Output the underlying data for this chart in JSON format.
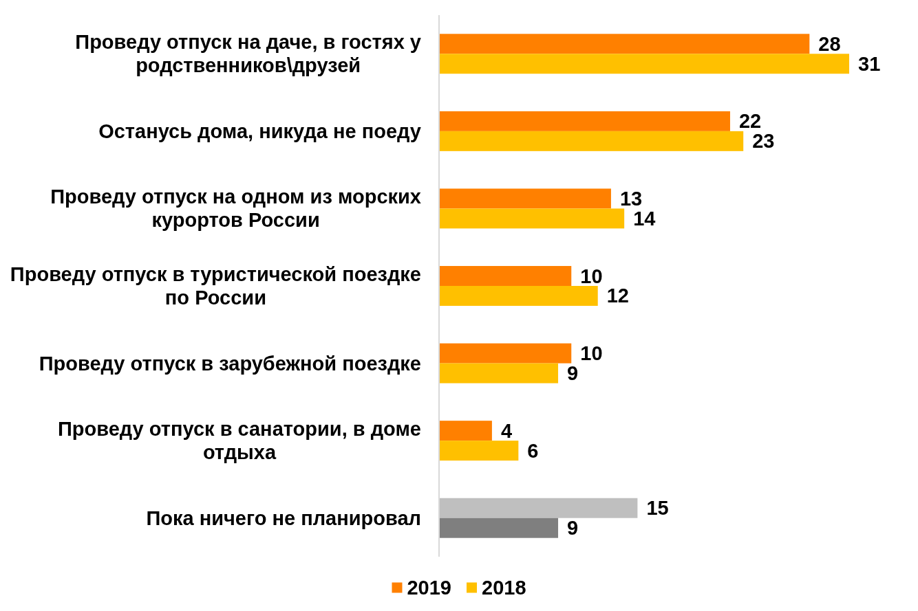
{
  "chart_data": {
    "type": "bar",
    "orientation": "horizontal",
    "categories": [
      "Проведу отпуск на даче, в гостях у родственников\\друзей",
      "Останусь дома, никуда не поеду",
      "Проведу отпуск на одном из морских курортов России",
      "Проведу отпуск в туристической поездке по России",
      "Проведу отпуск в зарубежной поездке",
      "Проведу отпуск в санатории, в доме отдыха",
      "Пока ничего не планировал"
    ],
    "series": [
      {
        "name": "2019",
        "color": "#ff8000",
        "colors": [
          "#ff8000",
          "#ff8000",
          "#ff8000",
          "#ff8000",
          "#ff8000",
          "#ff8000",
          "#bfbfbf"
        ],
        "values": [
          28,
          22,
          13,
          10,
          10,
          4,
          15
        ]
      },
      {
        "name": "2018",
        "color": "#ffc000",
        "colors": [
          "#ffc000",
          "#ffc000",
          "#ffc000",
          "#ffc000",
          "#ffc000",
          "#ffc000",
          "#7f7f7f"
        ],
        "values": [
          31,
          23,
          14,
          12,
          9,
          6,
          9
        ]
      }
    ],
    "tick_labels": "y",
    "data_labels": true,
    "legend": "bottom"
  }
}
